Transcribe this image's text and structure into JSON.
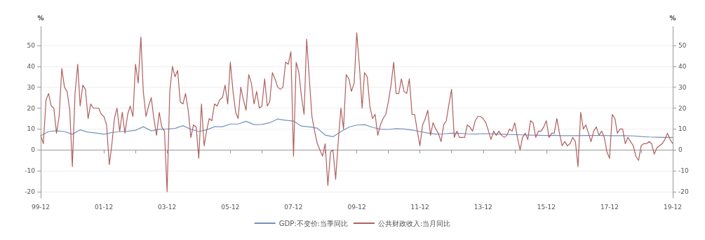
{
  "chart_data": {
    "type": "line",
    "x": [
      "1999-12",
      "2000-01",
      "2000-02",
      "2000-03",
      "2000-04",
      "2000-05",
      "2000-06",
      "2000-07",
      "2000-08",
      "2000-09",
      "2000-10",
      "2000-11",
      "2000-12",
      "2001-01",
      "2001-02",
      "2001-03",
      "2001-04",
      "2001-05",
      "2001-06",
      "2001-07",
      "2001-08",
      "2001-09",
      "2001-10",
      "2001-11",
      "2001-12",
      "2002-01",
      "2002-02",
      "2002-03",
      "2002-04",
      "2002-05",
      "2002-06",
      "2002-07",
      "2002-08",
      "2002-09",
      "2002-10",
      "2002-11",
      "2002-12",
      "2003-01",
      "2003-02",
      "2003-03",
      "2003-04",
      "2003-05",
      "2003-06",
      "2003-07",
      "2003-08",
      "2003-09",
      "2003-10",
      "2003-11",
      "2003-12",
      "2004-01",
      "2004-02",
      "2004-03",
      "2004-04",
      "2004-05",
      "2004-06",
      "2004-07",
      "2004-08",
      "2004-09",
      "2004-10",
      "2004-11",
      "2004-12",
      "2005-01",
      "2005-02",
      "2005-03",
      "2005-04",
      "2005-05",
      "2005-06",
      "2005-07",
      "2005-08",
      "2005-09",
      "2005-10",
      "2005-11",
      "2005-12",
      "2006-01",
      "2006-02",
      "2006-03",
      "2006-04",
      "2006-05",
      "2006-06",
      "2006-07",
      "2006-08",
      "2006-09",
      "2006-10",
      "2006-11",
      "2006-12",
      "2007-01",
      "2007-02",
      "2007-03",
      "2007-04",
      "2007-05",
      "2007-06",
      "2007-07",
      "2007-08",
      "2007-09",
      "2007-10",
      "2007-11",
      "2007-12",
      "2008-01",
      "2008-02",
      "2008-03",
      "2008-04",
      "2008-05",
      "2008-06",
      "2008-07",
      "2008-08",
      "2008-09",
      "2008-10",
      "2008-11",
      "2008-12",
      "2009-01",
      "2009-02",
      "2009-03",
      "2009-04",
      "2009-05",
      "2009-06",
      "2009-07",
      "2009-08",
      "2009-09",
      "2009-10",
      "2009-11",
      "2009-12",
      "2010-01",
      "2010-02",
      "2010-03",
      "2010-04",
      "2010-05",
      "2010-06",
      "2010-07",
      "2010-08",
      "2010-09",
      "2010-10",
      "2010-11",
      "2010-12",
      "2011-01",
      "2011-02",
      "2011-03",
      "2011-04",
      "2011-05",
      "2011-06",
      "2011-07",
      "2011-08",
      "2011-09",
      "2011-10",
      "2011-11",
      "2011-12",
      "2012-01",
      "2012-02",
      "2012-03",
      "2012-04",
      "2012-05",
      "2012-06",
      "2012-07",
      "2012-08",
      "2012-09",
      "2012-10",
      "2012-11",
      "2012-12",
      "2013-01",
      "2013-02",
      "2013-03",
      "2013-04",
      "2013-05",
      "2013-06",
      "2013-07",
      "2013-08",
      "2013-09",
      "2013-10",
      "2013-11",
      "2013-12",
      "2014-01",
      "2014-02",
      "2014-03",
      "2014-04",
      "2014-05",
      "2014-06",
      "2014-07",
      "2014-08",
      "2014-09",
      "2014-10",
      "2014-11",
      "2014-12",
      "2015-01",
      "2015-02",
      "2015-03",
      "2015-04",
      "2015-05",
      "2015-06",
      "2015-07",
      "2015-08",
      "2015-09",
      "2015-10",
      "2015-11",
      "2015-12",
      "2016-01",
      "2016-02",
      "2016-03",
      "2016-04",
      "2016-05",
      "2016-06",
      "2016-07",
      "2016-08",
      "2016-09",
      "2016-10",
      "2016-11",
      "2016-12",
      "2017-01",
      "2017-02",
      "2017-03",
      "2017-04",
      "2017-05",
      "2017-06",
      "2017-07",
      "2017-08",
      "2017-09",
      "2017-10",
      "2017-11",
      "2017-12",
      "2018-01",
      "2018-02",
      "2018-03",
      "2018-04",
      "2018-05",
      "2018-06",
      "2018-07",
      "2018-08",
      "2018-09",
      "2018-10",
      "2018-11",
      "2018-12",
      "2019-01",
      "2019-02",
      "2019-03",
      "2019-04",
      "2019-05",
      "2019-06",
      "2019-07",
      "2019-08",
      "2019-09",
      "2019-10",
      "2019-11",
      "2019-12"
    ],
    "series": [
      {
        "name": "GDP:不变价:当季同比",
        "color": "#7392bd",
        "x": [
          "1999-12",
          "2000-03",
          "2000-06",
          "2000-09",
          "2000-12",
          "2001-03",
          "2001-06",
          "2001-09",
          "2001-12",
          "2002-03",
          "2002-06",
          "2002-09",
          "2002-12",
          "2003-03",
          "2003-06",
          "2003-09",
          "2003-12",
          "2004-03",
          "2004-06",
          "2004-09",
          "2004-12",
          "2005-03",
          "2005-06",
          "2005-09",
          "2005-12",
          "2006-03",
          "2006-06",
          "2006-09",
          "2006-12",
          "2007-03",
          "2007-06",
          "2007-09",
          "2007-12",
          "2008-03",
          "2008-06",
          "2008-09",
          "2008-12",
          "2009-03",
          "2009-06",
          "2009-09",
          "2009-12",
          "2010-03",
          "2010-06",
          "2010-09",
          "2010-12",
          "2011-03",
          "2011-06",
          "2011-09",
          "2011-12",
          "2012-03",
          "2012-06",
          "2012-09",
          "2012-12",
          "2013-03",
          "2013-06",
          "2013-09",
          "2013-12",
          "2014-03",
          "2014-06",
          "2014-09",
          "2014-12",
          "2015-03",
          "2015-06",
          "2015-09",
          "2015-12",
          "2016-03",
          "2016-06",
          "2016-09",
          "2016-12",
          "2017-03",
          "2017-06",
          "2017-09",
          "2017-12",
          "2018-03",
          "2018-06",
          "2018-09",
          "2018-12",
          "2019-03",
          "2019-06",
          "2019-09",
          "2019-12"
        ],
        "values": [
          6.8,
          8.8,
          9.2,
          8.8,
          7.5,
          9.6,
          8.5,
          8.1,
          7.5,
          8.3,
          8.8,
          8.9,
          9.4,
          11.1,
          9.1,
          9.9,
          10,
          10.3,
          11.6,
          9.9,
          8.8,
          9.6,
          11.1,
          11.1,
          12.4,
          12.4,
          13.7,
          12.1,
          12.2,
          13,
          14.8,
          14.2,
          13.8,
          11.4,
          11,
          10.4,
          7.1,
          6.3,
          8.8,
          10.9,
          11.9,
          12.1,
          10.8,
          9.9,
          9.8,
          10.2,
          10,
          9.5,
          8.8,
          8.1,
          7.6,
          7.7,
          8,
          7.9,
          7.7,
          7.6,
          7.8,
          7.7,
          7.6,
          7.4,
          7.3,
          7.2,
          7.1,
          7,
          6.9,
          7,
          6.8,
          6.8,
          6.8,
          6.9,
          6.9,
          6.9,
          6.8,
          6.8,
          6.8,
          6.7,
          6.4,
          6.2,
          6.1,
          6,
          6
        ]
      },
      {
        "name": "公共财政收入:当月同比",
        "color": "#b05f5f",
        "values": [
          7,
          3,
          24,
          27,
          21,
          20,
          8,
          16,
          39,
          30,
          28,
          19,
          -8,
          27,
          41,
          21,
          31,
          29,
          15,
          22,
          20,
          20,
          20,
          17,
          16,
          12,
          -7,
          2,
          15,
          20,
          9,
          18,
          8,
          17,
          21,
          16,
          41,
          32,
          54,
          28,
          16,
          21,
          25,
          15,
          7,
          18,
          11,
          9,
          -20,
          28,
          40,
          35,
          38,
          23,
          22,
          27,
          19,
          6,
          12,
          11,
          -4,
          22,
          2,
          9,
          15,
          14,
          22,
          21,
          24,
          25,
          31,
          22,
          42,
          28,
          18,
          15,
          30,
          24,
          19,
          36,
          32,
          22,
          28,
          20,
          21,
          34,
          21,
          23,
          37,
          34,
          30,
          29,
          30,
          42,
          41,
          47,
          -3,
          42,
          37,
          26,
          17,
          53,
          34,
          16,
          9,
          3,
          0,
          -3,
          3,
          -17,
          -1,
          0,
          -14,
          4,
          20,
          10,
          36,
          34,
          28,
          32,
          56,
          40,
          20,
          37,
          35,
          21,
          15,
          17,
          7,
          12,
          15,
          17,
          23,
          31,
          42,
          27,
          27,
          34,
          28,
          27,
          34,
          17,
          17,
          9,
          2,
          12,
          15,
          19,
          7,
          13,
          10,
          8,
          4,
          12,
          14,
          22,
          29,
          6,
          9,
          6,
          6,
          6,
          12,
          11,
          9,
          14,
          16,
          16,
          15,
          13,
          9,
          5,
          9,
          7,
          9,
          7,
          6,
          7,
          10,
          9,
          13,
          6,
          0,
          6,
          8,
          5,
          14,
          13,
          6,
          9,
          9,
          11,
          14,
          6,
          8,
          8,
          15,
          8,
          2,
          4,
          2,
          3,
          6,
          4,
          -8,
          18,
          10,
          12,
          8,
          4,
          9,
          11,
          7,
          9,
          6,
          -1,
          -4,
          17,
          15,
          8,
          10,
          10,
          3,
          6,
          4,
          2,
          -3,
          -5,
          2,
          3,
          3,
          4,
          3,
          -2,
          1,
          2,
          3,
          5,
          8,
          5,
          3
        ]
      }
    ],
    "ylabel": "%",
    "y2label": "%",
    "xlim": [
      "1999-12",
      "2019-12"
    ],
    "xticks": [
      {
        "value": "1999-12",
        "label": "99-12"
      },
      {
        "value": "2000-12",
        "label": null
      },
      {
        "value": "2001-12",
        "label": "01-12"
      },
      {
        "value": "2002-12",
        "label": null
      },
      {
        "value": "2003-12",
        "label": "03-12"
      },
      {
        "value": "2004-12",
        "label": null
      },
      {
        "value": "2005-12",
        "label": "05-12"
      },
      {
        "value": "2006-12",
        "label": null
      },
      {
        "value": "2007-12",
        "label": "07-12"
      },
      {
        "value": "2008-12",
        "label": null
      },
      {
        "value": "2009-12",
        "label": "09-12"
      },
      {
        "value": "2010-12",
        "label": null
      },
      {
        "value": "2011-12",
        "label": "11-12"
      },
      {
        "value": "2012-12",
        "label": null
      },
      {
        "value": "2013-12",
        "label": "13-12"
      },
      {
        "value": "2014-12",
        "label": null
      },
      {
        "value": "2015-12",
        "label": "15-12"
      },
      {
        "value": "2016-12",
        "label": null
      },
      {
        "value": "2017-12",
        "label": "17-12"
      },
      {
        "value": "2018-12",
        "label": null
      },
      {
        "value": "2019-12",
        "label": "19-12"
      }
    ],
    "ylim": [
      -23,
      59
    ],
    "yticks": [
      -20,
      -10,
      0,
      10,
      20,
      30,
      40,
      50
    ],
    "y2lim": [
      -23,
      59
    ],
    "y2ticks": [
      -20,
      -10,
      0,
      10,
      20,
      30,
      40,
      50
    ],
    "grid": "y",
    "legend": "bottom",
    "marker": "none",
    "line_style": "solid"
  }
}
